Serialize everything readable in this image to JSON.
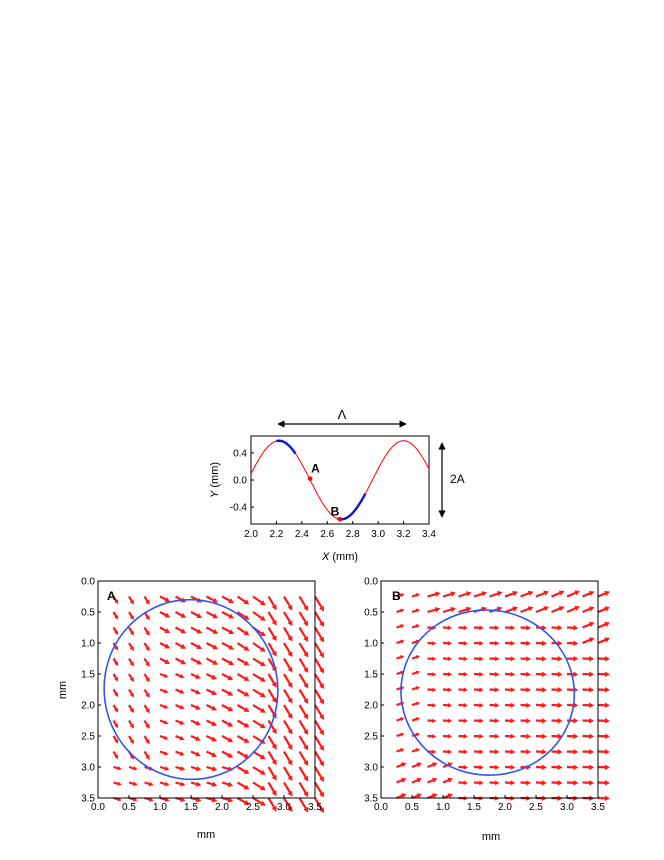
{
  "colors": {
    "curve": "#ff0000",
    "highlight": "#1010dd",
    "vector": "#ff1a1a",
    "ellipse": "#3355ee",
    "axis": "#000000"
  },
  "chart_data": [
    {
      "type": "line",
      "xlabel_var": "X",
      "xlabel_unit": " (mm)",
      "ylabel_var": "Y",
      "ylabel_unit": " (mm)",
      "xlim": [
        2.0,
        3.4
      ],
      "ylim": [
        -0.65,
        0.65
      ],
      "xticks": [
        2.0,
        2.2,
        2.4,
        2.6,
        2.8,
        3.0,
        3.2,
        3.4
      ],
      "xtick_labels": [
        "2.0",
        "2.2",
        "2.4",
        "2.6",
        "2.8",
        "3.0",
        "3.2",
        "3.4"
      ],
      "yticks": [
        0.4,
        0.0,
        -0.4
      ],
      "ytick_labels": [
        "0.4",
        "0.0",
        "-0.4"
      ],
      "series": [
        {
          "amplitude": 0.58,
          "wavelength": 0.98,
          "x_peak": 2.22,
          "x": [
            2.0,
            3.4
          ]
        }
      ],
      "highlight_segments": [
        {
          "x": [
            2.2,
            2.35
          ]
        },
        {
          "x": [
            2.68,
            2.9
          ]
        }
      ],
      "points": [
        {
          "label": "A",
          "x": 2.465,
          "y": 0.02
        },
        {
          "label": "B",
          "x": 2.7,
          "y": -0.58
        }
      ],
      "annotations": {
        "wavelength_label": "Λ",
        "amplitude_label": "2A"
      }
    },
    {
      "type": "vector-field",
      "panel_label": "A",
      "xlabel": "mm",
      "ylabel": "mm",
      "xlim": [
        0.0,
        3.5
      ],
      "ylim": [
        3.5,
        0.0
      ],
      "xticks": [
        "0.0",
        "0.5",
        "1.0",
        "1.5",
        "2.0",
        "2.5",
        "3.0",
        "3.5"
      ],
      "yticks": [
        "0.0",
        "0.5",
        "1.0",
        "1.5",
        "2.0",
        "2.5",
        "3.0",
        "3.5"
      ],
      "ellipse": {
        "cx": 1.5,
        "cy": 1.75,
        "rx": 1.4,
        "ry": 1.45,
        "rotation_deg": -8
      },
      "grid": {
        "start": 0.25,
        "step": 0.25,
        "count": 14
      }
    },
    {
      "type": "vector-field",
      "panel_label": "B",
      "xlabel": "mm",
      "ylabel": "",
      "xlim": [
        0.0,
        3.5
      ],
      "ylim": [
        3.5,
        0.0
      ],
      "xticks": [
        "0.0",
        "0.5",
        "1.0",
        "1.5",
        "2.0",
        "2.5",
        "3.0",
        "3.5"
      ],
      "yticks": [
        "0.0",
        "0.5",
        "1.0",
        "1.5",
        "2.0",
        "2.5",
        "3.0",
        "3.5"
      ],
      "ellipse": {
        "cx": 1.72,
        "cy": 1.8,
        "rx": 1.4,
        "ry": 1.33,
        "rotation_deg": 10
      },
      "grid": {
        "start": 0.25,
        "step": 0.25,
        "count": 14
      }
    }
  ]
}
